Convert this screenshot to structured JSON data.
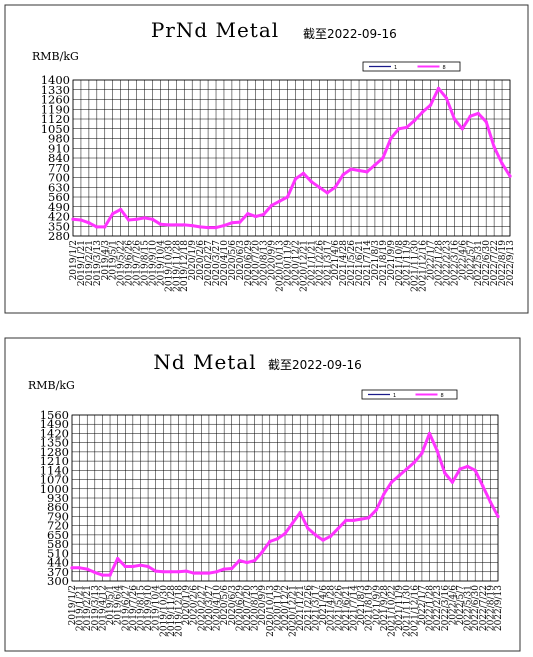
{
  "chart_data": [
    {
      "type": "line",
      "title": "PrNd Metal",
      "subtitle": "截至2022-09-16",
      "ylabel": "RMB/kG",
      "ylim": [
        280,
        1400
      ],
      "yticks": [
        1400,
        1330,
        1260,
        1190,
        1120,
        1050,
        980,
        910,
        840,
        770,
        700,
        630,
        560,
        490,
        420,
        350,
        280
      ],
      "xticks": [
        "2019/1/2",
        "2019/1/21",
        "2019/2/21",
        "2019/3/13",
        "2019/4/3",
        "2019/5/1",
        "2019/5/22",
        "2019/6/26",
        "2019/7/26",
        "2019/8/15",
        "2019/9/10",
        "2019/10/4",
        "2019/10/30",
        "2019/11/28",
        "2019/12/18",
        "2020/1/9",
        "2020/2/6",
        "2020/2/27",
        "2020/3/27",
        "2020/4/10",
        "2020/5/6",
        "2020/6/3",
        "2020/6/29",
        "2020/7/20",
        "2020/8/13",
        "2020/9/9",
        "2020/10/13",
        "2020/11/9",
        "2020/12/2",
        "2020/12/21",
        "2021/1/21",
        "2021/2/26",
        "2021/3/17",
        "2021/4/6",
        "2021/4/28",
        "2021/5/26",
        "2021/6/21",
        "2021/7/14",
        "2021/8/3",
        "2021/8/19",
        "2021/9/9",
        "2021/10/8",
        "2021/11/9",
        "2021/11/30",
        "2021/12/16",
        "2022/1/7",
        "2022/1/28",
        "2022/2/23",
        "2022/3/16",
        "2022/4/6",
        "2022/5/7",
        "2022/5/31",
        "2022/6/30",
        "2022/7/22",
        "2022/8/19",
        "2022/9/13"
      ],
      "grid": true,
      "legend": "top-right",
      "legend_items": [
        {
          "label": "1",
          "color": "#1a1a8a"
        },
        {
          "label": "8",
          "color": "#ff33ff"
        }
      ],
      "series": [
        {
          "color": "#ff33ff",
          "x": [
            0,
            1,
            2,
            3,
            4,
            5,
            6,
            7,
            8,
            9,
            10,
            11,
            12,
            13,
            14,
            15,
            16,
            17,
            18,
            19,
            20,
            21,
            22,
            23,
            24,
            25,
            26,
            27,
            28,
            29,
            30,
            31,
            32,
            33,
            34,
            35,
            36,
            37,
            38,
            39,
            40,
            41,
            42,
            43,
            44,
            45,
            46,
            47,
            48,
            49,
            50,
            51,
            52,
            53,
            54,
            55
          ],
          "y": [
            400,
            395,
            375,
            345,
            345,
            440,
            470,
            395,
            400,
            410,
            400,
            365,
            360,
            360,
            360,
            355,
            345,
            340,
            340,
            355,
            375,
            380,
            440,
            420,
            435,
            500,
            530,
            560,
            690,
            730,
            670,
            630,
            590,
            630,
            720,
            760,
            750,
            740,
            790,
            840,
            980,
            1050,
            1060,
            1110,
            1170,
            1220,
            1340,
            1270,
            1120,
            1050,
            1140,
            1160,
            1100,
            920,
            800,
            710
          ]
        }
      ]
    },
    {
      "type": "line",
      "title": "Nd Metal",
      "subtitle": "截至2022-09-16",
      "ylabel": "RMB/kG",
      "ylim": [
        300,
        1560
      ],
      "yticks": [
        1560,
        1490,
        1420,
        1350,
        1280,
        1210,
        1140,
        1070,
        1000,
        930,
        860,
        790,
        720,
        650,
        580,
        510,
        440,
        370,
        300
      ],
      "xticks": [
        "2019/1/2",
        "2019/1/21",
        "2019/2/21",
        "2019/3/13",
        "2019/4/12",
        "2019/5/1",
        "2019/6/4",
        "2019/6/27",
        "2019/7/26",
        "2019/8/15",
        "2019/9/10",
        "2019/10/4",
        "2019/10/30",
        "2019/11/28",
        "2019/12/18",
        "2020/1/9",
        "2020/2/6",
        "2020/2/27",
        "2020/3/27",
        "2020/4/10",
        "2020/5/6",
        "2020/6/3",
        "2020/6/29",
        "2020/7/20",
        "2020/8/13",
        "2020/9/9",
        "2020/10/13",
        "2020/11/9",
        "2020/12/2",
        "2020/12/21",
        "2021/1/21",
        "2021/2/26",
        "2021/3/17",
        "2021/4/6",
        "2021/4/28",
        "2021/5/26",
        "2021/6/21",
        "2021/7/14",
        "2021/8/3",
        "2021/8/19",
        "2021/9/9",
        "2021/9/28",
        "2021/10/22",
        "2021/11/9",
        "2021/11/30",
        "2021/12/16",
        "2022/1/7",
        "2022/1/28",
        "2022/2/23",
        "2022/3/16",
        "2022/4/6",
        "2022/5/7",
        "2022/5/31",
        "2022/6/30",
        "2022/7/22",
        "2022/8/19",
        "2022/9/13"
      ],
      "grid": true,
      "legend": "top-right",
      "legend_items": [
        {
          "label": "1",
          "color": "#1a1a8a"
        },
        {
          "label": "8",
          "color": "#ff33ff"
        }
      ],
      "series": [
        {
          "color": "#ff33ff",
          "x": [
            0,
            1,
            2,
            3,
            4,
            5,
            6,
            7,
            8,
            9,
            10,
            11,
            12,
            13,
            14,
            15,
            16,
            17,
            18,
            19,
            20,
            21,
            22,
            23,
            24,
            25,
            26,
            27,
            28,
            29,
            30,
            31,
            32,
            33,
            34,
            35,
            36,
            37,
            38,
            39,
            40,
            41,
            42,
            43,
            44,
            45,
            46,
            47,
            48,
            49,
            50,
            51,
            52,
            53,
            54,
            55,
            56
          ],
          "y": [
            400,
            400,
            390,
            365,
            345,
            345,
            470,
            410,
            410,
            420,
            410,
            375,
            370,
            370,
            370,
            375,
            360,
            360,
            360,
            370,
            390,
            395,
            455,
            440,
            455,
            520,
            600,
            620,
            660,
            740,
            820,
            700,
            650,
            610,
            640,
            700,
            760,
            760,
            770,
            780,
            840,
            960,
            1050,
            1100,
            1150,
            1200,
            1270,
            1420,
            1290,
            1120,
            1050,
            1150,
            1170,
            1140,
            1020,
            900,
            790
          ]
        }
      ]
    }
  ]
}
